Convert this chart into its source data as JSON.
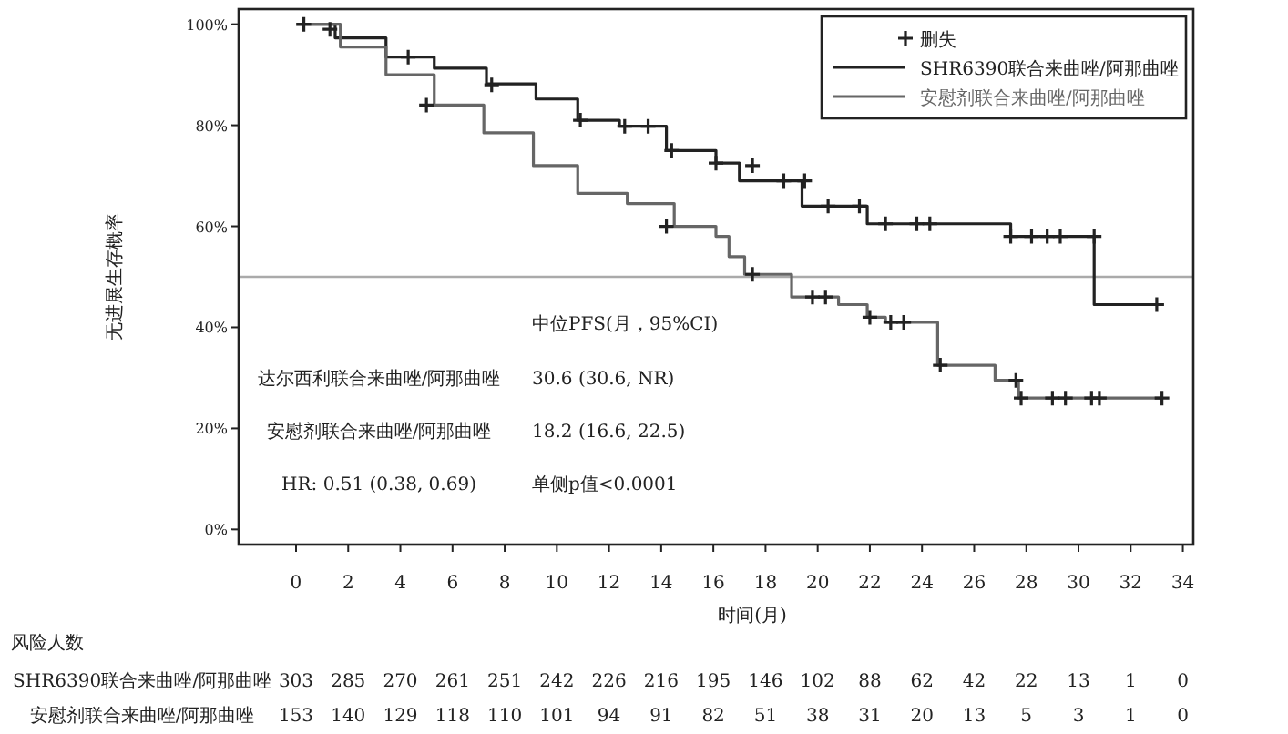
{
  "chart_data": {
    "type": "step",
    "xlabel": "时间(月)",
    "ylabel": "无进展生存概率",
    "xlim": [
      -2.2,
      34.4
    ],
    "ylim": [
      -3,
      103
    ],
    "xticks": [
      0,
      2,
      4,
      6,
      8,
      10,
      12,
      14,
      16,
      18,
      20,
      22,
      24,
      26,
      28,
      30,
      32,
      34
    ],
    "yticks": [
      {
        "value": 0,
        "label": "0%"
      },
      {
        "value": 20,
        "label": "20%"
      },
      {
        "value": 40,
        "label": "40%"
      },
      {
        "value": 60,
        "label": "60%"
      },
      {
        "value": 80,
        "label": "80%"
      },
      {
        "value": 100,
        "label": "100%"
      }
    ],
    "series": [
      {
        "name": "删失",
        "type": "scatter",
        "marker": "cross",
        "color": "#222222",
        "x": [
          0.3,
          1.3,
          4.3,
          7.5,
          10.9,
          12.6,
          13.5,
          14.4,
          16.1,
          17.5,
          18.7,
          19.5,
          20.4,
          21.6,
          22.6,
          23.8,
          24.3,
          27.4,
          28.2,
          28.8,
          29.3,
          30.6,
          33.0,
          5.0,
          14.2,
          17.5,
          19.8,
          20.3,
          22.0,
          22.8,
          23.3,
          24.7,
          27.6,
          27.8,
          29.0,
          29.5,
          30.5,
          30.8,
          33.2
        ],
        "values": [
          100,
          99,
          93.5,
          88,
          81,
          79.8,
          79.8,
          75,
          72.5,
          72,
          69,
          69,
          64,
          64,
          60.5,
          60.5,
          60.5,
          58,
          58,
          58,
          58,
          58,
          44.5,
          84,
          60,
          50.5,
          46,
          46,
          42,
          41,
          41,
          32.5,
          29.5,
          26,
          26,
          26,
          26,
          26,
          26
        ]
      },
      {
        "name": "SHR6390联合来曲唑/阿那曲唑",
        "color": "#222222",
        "x": [
          0,
          1.5,
          3.45,
          5.3,
          7.3,
          9.2,
          10.8,
          12.4,
          14.2,
          16.1,
          17.0,
          19.4,
          21.9,
          27.4,
          30.6,
          33.0
        ],
        "values": [
          100,
          97.3,
          93.5,
          91.3,
          88.2,
          85.2,
          81,
          79.8,
          75,
          72.5,
          69,
          64,
          60.5,
          58,
          44.5,
          44.5
        ]
      },
      {
        "name": "安慰剂联合来曲唑/阿那曲唑",
        "color": "#666666",
        "x": [
          0,
          1.7,
          3.45,
          5.3,
          7.2,
          9.1,
          10.8,
          12.7,
          14.5,
          16.1,
          16.6,
          17.2,
          19.0,
          20.8,
          21.9,
          22.6,
          24.6,
          26.8,
          27.7,
          33.2
        ],
        "values": [
          100,
          95.5,
          90,
          84,
          78.5,
          72,
          66.5,
          64.5,
          60,
          58,
          54,
          50.5,
          46,
          44.5,
          42,
          41,
          32.5,
          29.5,
          26,
          26
        ]
      }
    ],
    "ref_lines": [
      {
        "axis": "y",
        "value": 50,
        "color": "#aaaaaa"
      }
    ],
    "legend": "top right",
    "annotations": [
      "中位PFS(月，95%CI)",
      "达尔西利联合来曲唑/阿那曲唑",
      "30.6 (30.6, NR)",
      "安慰剂联合来曲唑/阿那曲唑",
      "18.2 (16.6, 22.5)",
      "HR: 0.51 (0.38, 0.69)",
      "单侧p值<0.0001",
      "风险人数",
      "SHR6390联合来曲唑/阿那曲唑",
      "303",
      "285",
      "270",
      "261",
      "251",
      "242",
      "226",
      "216",
      "195",
      "146",
      "102",
      "88",
      "62",
      "42",
      "22",
      "13",
      "1",
      "0",
      "安慰剂联合来曲唑/阿那曲唑",
      "153",
      "140",
      "129",
      "118",
      "110",
      "101",
      "94",
      "91",
      "82",
      "51",
      "38",
      "31",
      "20",
      "13",
      "5",
      "3",
      "1",
      "0"
    ]
  }
}
